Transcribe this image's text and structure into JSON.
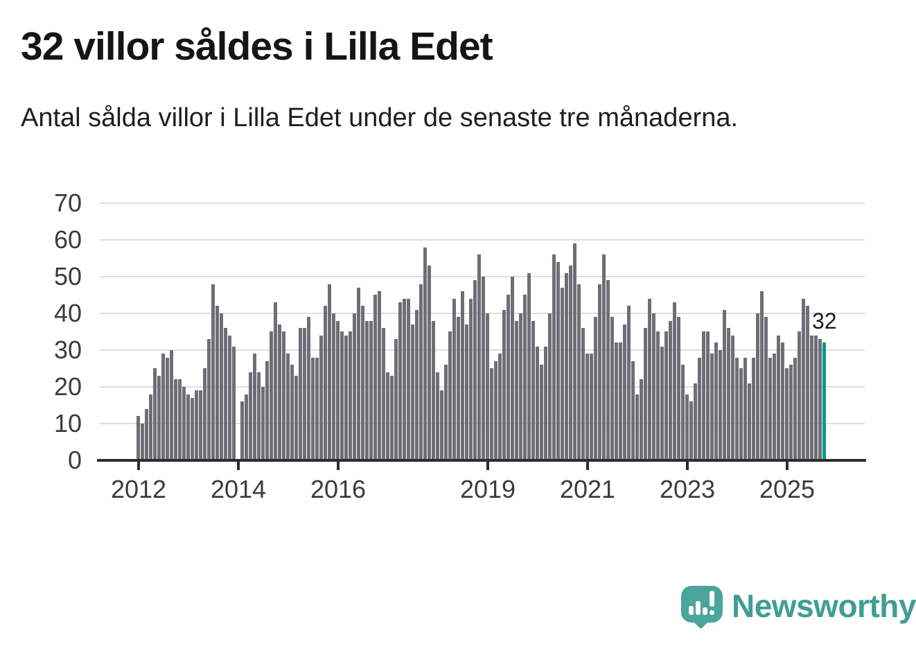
{
  "title": "32 villor såldes i Lilla Edet",
  "subtitle": "Antal sålda villor i Lilla Edet under de senaste tre månaderna.",
  "annotation": "32",
  "branding": {
    "logo_text": "Newsworthy"
  },
  "colors": {
    "bar": "#6f6e75",
    "highlight": "#009a8e",
    "grid": "#dedede",
    "axis": "#2d2c2e",
    "axis_text": "#3b3b3b",
    "logo": "#3f9e93"
  },
  "chart_data": {
    "type": "bar",
    "title": "32 villor såldes i Lilla Edet",
    "subtitle": "Antal sålda villor i Lilla Edet under de senaste tre månaderna.",
    "x_unit": "month",
    "x_first": "2012-01",
    "x_last": "2025-10",
    "ylim": [
      0,
      70
    ],
    "yticks": [
      0,
      10,
      20,
      30,
      40,
      50,
      60,
      70
    ],
    "grid": true,
    "xticks": [
      {
        "label": "2012",
        "month_index": 0
      },
      {
        "label": "2014",
        "month_index": 24
      },
      {
        "label": "2016",
        "month_index": 48
      },
      {
        "label": "2019",
        "month_index": 84
      },
      {
        "label": "2021",
        "month_index": 108
      },
      {
        "label": "2023",
        "month_index": 132
      },
      {
        "label": "2025",
        "month_index": 156
      }
    ],
    "values": [
      12,
      10,
      14,
      18,
      25,
      23,
      29,
      28,
      30,
      22,
      22,
      20,
      18,
      17,
      19,
      19,
      25,
      33,
      48,
      42,
      40,
      36,
      34,
      31,
      0,
      16,
      18,
      24,
      29,
      24,
      20,
      27,
      35,
      43,
      37,
      35,
      29,
      26,
      23,
      36,
      36,
      39,
      28,
      28,
      34,
      42,
      48,
      40,
      38,
      35,
      34,
      35,
      40,
      47,
      42,
      38,
      38,
      45,
      46,
      36,
      24,
      23,
      33,
      43,
      44,
      44,
      37,
      41,
      48,
      58,
      53,
      38,
      24,
      19,
      26,
      35,
      44,
      39,
      46,
      37,
      44,
      49,
      56,
      50,
      40,
      25,
      27,
      29,
      41,
      45,
      50,
      38,
      40,
      45,
      51,
      38,
      31,
      26,
      31,
      40,
      56,
      54,
      47,
      51,
      53,
      59,
      48,
      36,
      29,
      29,
      39,
      48,
      56,
      49,
      39,
      32,
      32,
      37,
      42,
      27,
      18,
      22,
      36,
      44,
      40,
      35,
      31,
      35,
      38,
      43,
      39,
      26,
      18,
      16,
      21,
      28,
      35,
      35,
      29,
      32,
      30,
      41,
      36,
      34,
      28,
      25,
      28,
      21,
      28,
      40,
      46,
      39,
      28,
      29,
      34,
      32,
      25,
      26,
      28,
      35,
      44,
      42,
      34,
      34,
      33,
      32
    ],
    "highlight_last_bar": true,
    "highlight_value": 32,
    "annotation_text": "32",
    "legend": null
  }
}
